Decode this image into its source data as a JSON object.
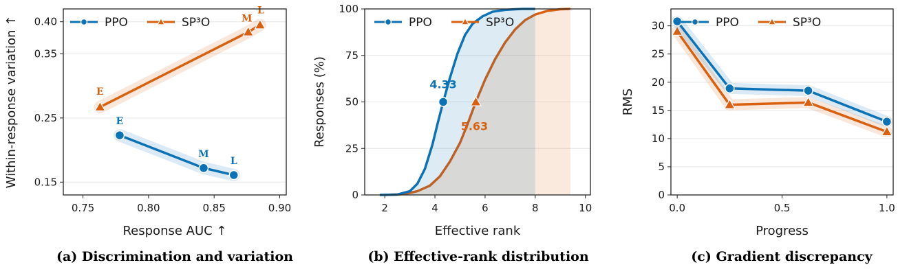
{
  "colors": {
    "ppo": "#0b72b5",
    "sp3o": "#d9600f",
    "grid": "#e6e6e6",
    "axis": "#222222"
  },
  "legend": {
    "ppo": "PPO",
    "sp3o": "SP³O"
  },
  "captions": {
    "a": "(a) Discrimination and variation",
    "b": "(b) Effective-rank distribution",
    "c": "(c) Gradient discrepancy"
  },
  "chart_data": [
    {
      "type": "line",
      "xlabel": "Response AUC  ↑",
      "ylabel": "Within-response variation  ↑",
      "xlim": [
        0.735,
        0.905
      ],
      "ylim": [
        0.13,
        0.42
      ],
      "xticks": [
        "0.75",
        "0.80",
        "0.85",
        "0.90"
      ],
      "yticks": [
        "0.15",
        "0.25",
        "0.35",
        "0.40"
      ],
      "grid": "horizontal",
      "legend_position": "top-left",
      "series": [
        {
          "name": "PPO",
          "marker": "circle",
          "points": [
            {
              "x": 0.778,
              "y": 0.223,
              "label": "E"
            },
            {
              "x": 0.842,
              "y": 0.172,
              "label": "M"
            },
            {
              "x": 0.865,
              "y": 0.161,
              "label": "L"
            }
          ]
        },
        {
          "name": "SP³O",
          "marker": "triangle",
          "points": [
            {
              "x": 0.763,
              "y": 0.267,
              "label": "E"
            },
            {
              "x": 0.876,
              "y": 0.384,
              "label": "M"
            },
            {
              "x": 0.885,
              "y": 0.395,
              "label": "L"
            }
          ]
        }
      ]
    },
    {
      "type": "area",
      "xlabel": "Effective rank",
      "ylabel": "Responses (%)",
      "xlim": [
        1.2,
        10.2
      ],
      "ylim": [
        0,
        100
      ],
      "xticks": [
        "2",
        "4",
        "6",
        "8",
        "10"
      ],
      "yticks": [
        "0",
        "25",
        "50",
        "75",
        "100"
      ],
      "grid": "horizontal",
      "legend_position": "top-left",
      "series": [
        {
          "name": "PPO",
          "marker": "circle",
          "median": 4.33,
          "median_label": "4.33",
          "x": [
            1.8,
            2.5,
            3.0,
            3.3,
            3.6,
            3.9,
            4.1,
            4.33,
            4.6,
            4.9,
            5.2,
            5.5,
            5.9,
            6.3,
            6.8,
            7.2,
            7.5,
            8.0
          ],
          "y": [
            0,
            0.2,
            2,
            6,
            14,
            27,
            38,
            50,
            63,
            76,
            86,
            92,
            96,
            98.5,
            99.5,
            99.8,
            100,
            100
          ]
        },
        {
          "name": "SP³O",
          "marker": "triangle",
          "median": 5.63,
          "median_label": "5.63",
          "x": [
            2.0,
            2.8,
            3.3,
            3.8,
            4.2,
            4.6,
            5.0,
            5.3,
            5.63,
            6.0,
            6.4,
            6.8,
            7.2,
            7.6,
            8.0,
            8.5,
            9.0,
            9.4
          ],
          "y": [
            0,
            0.5,
            2,
            5,
            10,
            18,
            28,
            38,
            50,
            62,
            73,
            82,
            89,
            94,
            97,
            99,
            99.8,
            100
          ]
        }
      ]
    },
    {
      "type": "line",
      "xlabel": "Progress",
      "ylabel": "RMS",
      "xlim": [
        -0.03,
        1.03
      ],
      "ylim": [
        0,
        33
      ],
      "xticks": [
        "0.0",
        "0.5",
        "1.0"
      ],
      "yticks": [
        "0",
        "5",
        "10",
        "15",
        "20",
        "25",
        "30"
      ],
      "grid": "horizontal",
      "legend_position": "top-center",
      "series": [
        {
          "name": "PPO",
          "marker": "circle",
          "x": [
            0.0,
            0.25,
            0.625,
            1.0
          ],
          "y": [
            30.8,
            18.9,
            18.5,
            13.0
          ]
        },
        {
          "name": "SP³O",
          "marker": "triangle",
          "x": [
            0.0,
            0.25,
            0.625,
            1.0
          ],
          "y": [
            29.0,
            16.0,
            16.4,
            11.2
          ]
        }
      ]
    }
  ]
}
